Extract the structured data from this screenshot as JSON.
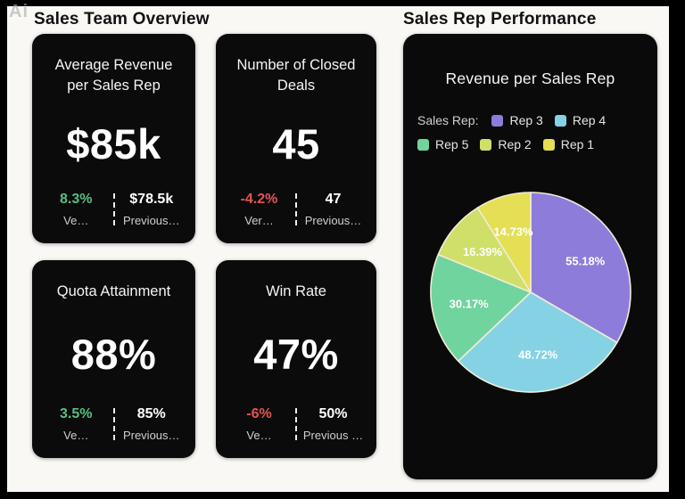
{
  "watermark": "Ai",
  "colors": {
    "frame_bg": "#000000",
    "canvas_bg": "#f9f8f5",
    "card_bg": "#0b0b0b",
    "positive": "#58bd82",
    "negative": "#e25555",
    "pie_stroke": "#f2ecd9"
  },
  "left_panel": {
    "title": "Sales Team Overview",
    "cards": [
      {
        "title": "Average Revenue per Sales Rep",
        "value": "$85k",
        "delta": "8.3%",
        "delta_dir": "up",
        "delta_label": "Ve…",
        "prev_value": "$78.5k",
        "prev_label": "Previous…"
      },
      {
        "title": "Number of Closed Deals",
        "value": "45",
        "delta": "-4.2%",
        "delta_dir": "down",
        "delta_label": "Ver…",
        "prev_value": "47",
        "prev_label": "Previous…"
      },
      {
        "title": "Quota Attainment",
        "value": "88%",
        "delta": "3.5%",
        "delta_dir": "up",
        "delta_label": "Ve…",
        "prev_value": "85%",
        "prev_label": "Previous…"
      },
      {
        "title": "Win Rate",
        "value": "47%",
        "delta": "-6%",
        "delta_dir": "down",
        "delta_label": "Ve…",
        "prev_value": "50%",
        "prev_label": "Previous …"
      }
    ]
  },
  "right_panel": {
    "title": "Sales Rep Performance",
    "chart_title": "Revenue per Sales Rep",
    "legend_title": "Sales Rep:"
  },
  "chart_data": {
    "type": "pie",
    "title": "Revenue per Sales Rep",
    "legend_title": "Sales Rep:",
    "legend_position": "top",
    "start_angle_deg": 0,
    "direction": "clockwise",
    "note": "slice angles are proportional to value/sum(values); displayed labels are the raw percentages",
    "slices": [
      {
        "label": "Rep 3",
        "value": 55.18,
        "display": "55.18%",
        "color": "#8e7cdb"
      },
      {
        "label": "Rep 4",
        "value": 48.72,
        "display": "48.72%",
        "color": "#85d2e4"
      },
      {
        "label": "Rep 5",
        "value": 30.17,
        "display": "30.17%",
        "color": "#70d49e"
      },
      {
        "label": "Rep 2",
        "value": 16.39,
        "display": "16.39%",
        "color": "#cfdf6a"
      },
      {
        "label": "Rep 1",
        "value": 14.73,
        "display": "14.73%",
        "color": "#e4df55"
      }
    ]
  }
}
